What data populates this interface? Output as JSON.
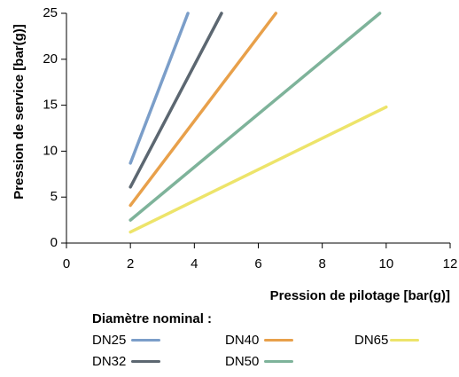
{
  "chart_data": {
    "type": "line",
    "title": "",
    "xlabel": "Pression de pilotage [bar(g)]",
    "ylabel": "Pression de service [bar(g)]",
    "xlim": [
      0,
      12
    ],
    "ylim": [
      0,
      25
    ],
    "xticks": [
      "0",
      "2",
      "4",
      "6",
      "8",
      "10",
      "12"
    ],
    "yticks": [
      "0",
      "5",
      "10",
      "15",
      "20",
      "25"
    ],
    "grid": false,
    "legend_title": "Diamètre nominal :",
    "series": [
      {
        "name": "DN25",
        "color": "#7b9ec9",
        "x": [
          2,
          3.8
        ],
        "y": [
          8.7,
          25
        ]
      },
      {
        "name": "DN32",
        "color": "#5c6771",
        "x": [
          2,
          4.85
        ],
        "y": [
          6.1,
          25
        ]
      },
      {
        "name": "DN40",
        "color": "#e8a04a",
        "x": [
          2,
          6.55
        ],
        "y": [
          4.1,
          25
        ]
      },
      {
        "name": "DN50",
        "color": "#7eb39a",
        "x": [
          2,
          9.8
        ],
        "y": [
          2.5,
          25
        ]
      },
      {
        "name": "DN65",
        "color": "#ede46a",
        "x": [
          2,
          10
        ],
        "y": [
          1.2,
          14.8
        ]
      }
    ]
  }
}
